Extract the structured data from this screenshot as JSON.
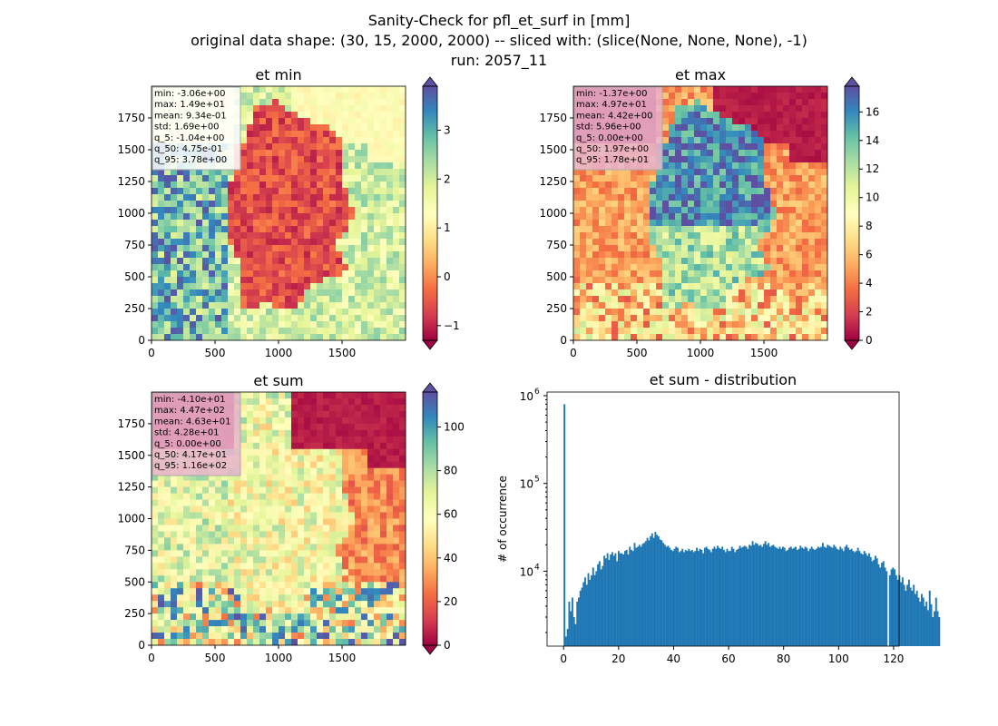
{
  "suptitle": {
    "line1": "Sanity-Check for pfl_et_surf in [mm]",
    "line2": "original data shape: (30, 15, 2000, 2000) -- sliced with: (slice(None, None, None), -1)",
    "line3": "run: 2057_11"
  },
  "colormap": "Spectral",
  "chart_data": [
    {
      "type": "heatmap",
      "title": "et min",
      "xlabel": "",
      "ylabel": "",
      "xticks": [
        0,
        500,
        1000,
        1500
      ],
      "yticks": [
        0,
        250,
        500,
        750,
        1000,
        1250,
        1500,
        1750
      ],
      "xlim": [
        0,
        2000
      ],
      "ylim": [
        0,
        2000
      ],
      "colorbar": {
        "range": [
          -1.3,
          3.9
        ],
        "ticks": [
          -1,
          0,
          1,
          2,
          3
        ],
        "extend": "both"
      },
      "stats": [
        "min: -3.06e+00",
        "max: 1.49e+01",
        "mean: 9.34e-01",
        "std: 1.69e+00",
        "q_5: -1.04e+00",
        "q_50: 4.75e-01",
        "q_95: 3.78e+00"
      ],
      "stats_box_color": "#ffffff"
    },
    {
      "type": "heatmap",
      "title": "et max",
      "xlabel": "",
      "ylabel": "",
      "xticks": [
        0,
        500,
        1000,
        1500
      ],
      "yticks": [
        0,
        250,
        500,
        750,
        1000,
        1250,
        1500,
        1750
      ],
      "xlim": [
        0,
        2000
      ],
      "ylim": [
        0,
        2000
      ],
      "colorbar": {
        "range": [
          0,
          17.8
        ],
        "ticks": [
          0,
          2,
          4,
          6,
          8,
          10,
          12,
          14,
          16
        ],
        "extend": "both"
      },
      "stats": [
        "min: -1.37e+00",
        "max: 4.97e+01",
        "mean: 4.42e+00",
        "std: 5.96e+00",
        "q_5: 0.00e+00",
        "q_50: 1.97e+00",
        "q_95: 1.78e+01"
      ],
      "stats_box_color": "#e8b4cc"
    },
    {
      "type": "heatmap",
      "title": "et sum",
      "xlabel": "",
      "ylabel": "",
      "xticks": [
        0,
        500,
        1000,
        1500
      ],
      "yticks": [
        0,
        250,
        500,
        750,
        1000,
        1250,
        1500,
        1750
      ],
      "xlim": [
        0,
        2000
      ],
      "ylim": [
        0,
        2000
      ],
      "colorbar": {
        "range": [
          0,
          116
        ],
        "ticks": [
          0,
          20,
          40,
          60,
          80,
          100
        ],
        "extend": "both"
      },
      "stats": [
        "min: -4.10e+01",
        "max: 4.47e+02",
        "mean: 4.63e+01",
        "std: 4.28e+01",
        "q_5: 0.00e+00",
        "q_50: 4.17e+01",
        "q_95: 1.16e+02"
      ],
      "stats_box_color": "#e8b4cc"
    },
    {
      "type": "bar",
      "title": "et sum - distribution",
      "xlabel": "",
      "ylabel": "# of occurrence",
      "yscale": "log",
      "xlim": [
        -6,
        122
      ],
      "ylim": [
        1400,
        1100000
      ],
      "xticks": [
        0,
        20,
        40,
        60,
        80,
        100,
        120
      ],
      "yticks": [
        {
          "value": 10000,
          "label": "10",
          "exp": "4"
        },
        {
          "value": 100000,
          "label": "10",
          "exp": "5"
        },
        {
          "value": 1000000,
          "label": "10",
          "exp": "6"
        }
      ],
      "bin_start": 0,
      "bin_width": 0.58,
      "color": "#1f77b4",
      "values": [
        800000,
        1800,
        2200,
        4500,
        3500,
        5000,
        3000,
        2500,
        4500,
        5000,
        6000,
        6500,
        7500,
        8500,
        7000,
        9500,
        8000,
        9000,
        11000,
        9000,
        10000,
        12000,
        13000,
        10500,
        11500,
        15000,
        14000,
        16000,
        13500,
        15500,
        16500,
        15000,
        16000,
        13000,
        17000,
        16000,
        16000,
        15500,
        17000,
        17500,
        15500,
        19000,
        17500,
        17000,
        21000,
        18500,
        19000,
        20000,
        19000,
        20500,
        21000,
        22000,
        24000,
        22500,
        25000,
        27000,
        24000,
        28000,
        26000,
        25000,
        23000,
        22500,
        21000,
        20000,
        19000,
        19500,
        18500,
        17500,
        17000,
        18000,
        19000,
        18500,
        16500,
        17000,
        18000,
        16500,
        17500,
        17000,
        18000,
        17000,
        17500,
        16500,
        17000,
        18500,
        17000,
        18000,
        17500,
        16000,
        18500,
        19000,
        18000,
        17500,
        16500,
        18000,
        19000,
        18000,
        19500,
        18500,
        18000,
        19000,
        17500,
        16500,
        18000,
        17000,
        17000,
        19000,
        18000,
        16500,
        17500,
        18000,
        19500,
        18500,
        19000,
        19500,
        19000,
        18000,
        20000,
        19500,
        22000,
        20000,
        21000,
        20500,
        19500,
        20000,
        19000,
        20500,
        22000,
        20000,
        21000,
        19000,
        19500,
        20000,
        19000,
        18500,
        18000,
        19000,
        18000,
        19000,
        18500,
        17000,
        17500,
        18500,
        19000,
        18000,
        18500,
        19000,
        17500,
        18000,
        19500,
        18500,
        18000,
        19000,
        18500,
        17000,
        18000,
        19000,
        18000,
        17500,
        18000,
        19000,
        18500,
        19000,
        21000,
        19000,
        18500,
        20000,
        19500,
        19000,
        18500,
        20000,
        19000,
        18000,
        17500,
        19000,
        18000,
        17000,
        19000,
        20000,
        18500,
        17500,
        18000,
        17000,
        16500,
        17000,
        18500,
        17000,
        16000,
        15500,
        17000,
        16000,
        15000,
        16000,
        14500,
        13000,
        13500,
        15000,
        14000,
        12000,
        11000,
        12500,
        13000,
        11000,
        10000,
        1300,
        9000,
        10500,
        11000,
        10500,
        9000,
        8000,
        9000,
        7500,
        8500,
        7000,
        6000,
        7000,
        8000,
        6500,
        6000,
        7000,
        5500,
        6000,
        5000,
        4500,
        5500,
        5000,
        4000,
        4500,
        3600,
        6000,
        4200,
        3000,
        3500,
        5000,
        3500,
        3000
      ]
    }
  ]
}
